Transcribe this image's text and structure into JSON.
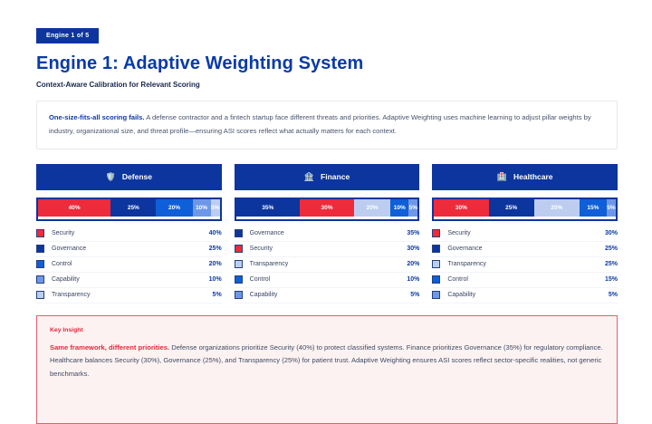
{
  "header": {
    "badge": "Engine 1 of 5",
    "title": "Engine 1: Adaptive Weighting System",
    "subtitle": "Context-Aware Calibration for Relevant Scoring"
  },
  "intro": {
    "lead": "One-size-fits-all scoring fails.",
    "body": "A defense contractor and a fintech startup face different threats and priorities. Adaptive Weighting uses machine learning to adjust pillar weights by industry, organizational size, and threat profile—ensuring ASI scores reflect what actually matters for each context."
  },
  "pillar_colors": {
    "Security": "#ee2b3b",
    "Governance": "#0d359e",
    "Control": "#0e5fd8",
    "Capability": "#6e97e8",
    "Transparency": "#bccdf0"
  },
  "colors": {
    "accent_navy": "#0d359e",
    "title_blue": "#0a3aa8",
    "insight_red": "#e8273a",
    "insight_bg": "#fdf2f2",
    "insight_border": "#e5606c"
  },
  "chart_data": [
    {
      "type": "bar",
      "stacked": true,
      "orientation": "horizontal",
      "title": "Defense",
      "icon": "🛡️",
      "unit": "%",
      "categories": [
        "Security",
        "Governance",
        "Control",
        "Capability",
        "Transparency"
      ],
      "values": [
        40,
        25,
        20,
        10,
        5
      ]
    },
    {
      "type": "bar",
      "stacked": true,
      "orientation": "horizontal",
      "title": "Finance",
      "icon": "🏦",
      "unit": "%",
      "categories": [
        "Governance",
        "Security",
        "Transparency",
        "Control",
        "Capability"
      ],
      "values": [
        35,
        30,
        20,
        10,
        5
      ]
    },
    {
      "type": "bar",
      "stacked": true,
      "orientation": "horizontal",
      "title": "Healthcare",
      "icon": "🏥",
      "unit": "%",
      "categories": [
        "Security",
        "Governance",
        "Transparency",
        "Control",
        "Capability"
      ],
      "values": [
        30,
        25,
        25,
        15,
        5
      ]
    }
  ],
  "insight": {
    "heading": "Key Insight",
    "lead": "Same framework, different priorities.",
    "body": "Defense organizations prioritize Security (40%) to protect classified systems. Finance prioritizes Governance (35%) for regulatory compliance. Healthcare balances Security (30%), Governance (25%), and Transparency (25%) for patient trust. Adaptive Weighting ensures ASI scores reflect sector-specific realities, not generic benchmarks."
  }
}
